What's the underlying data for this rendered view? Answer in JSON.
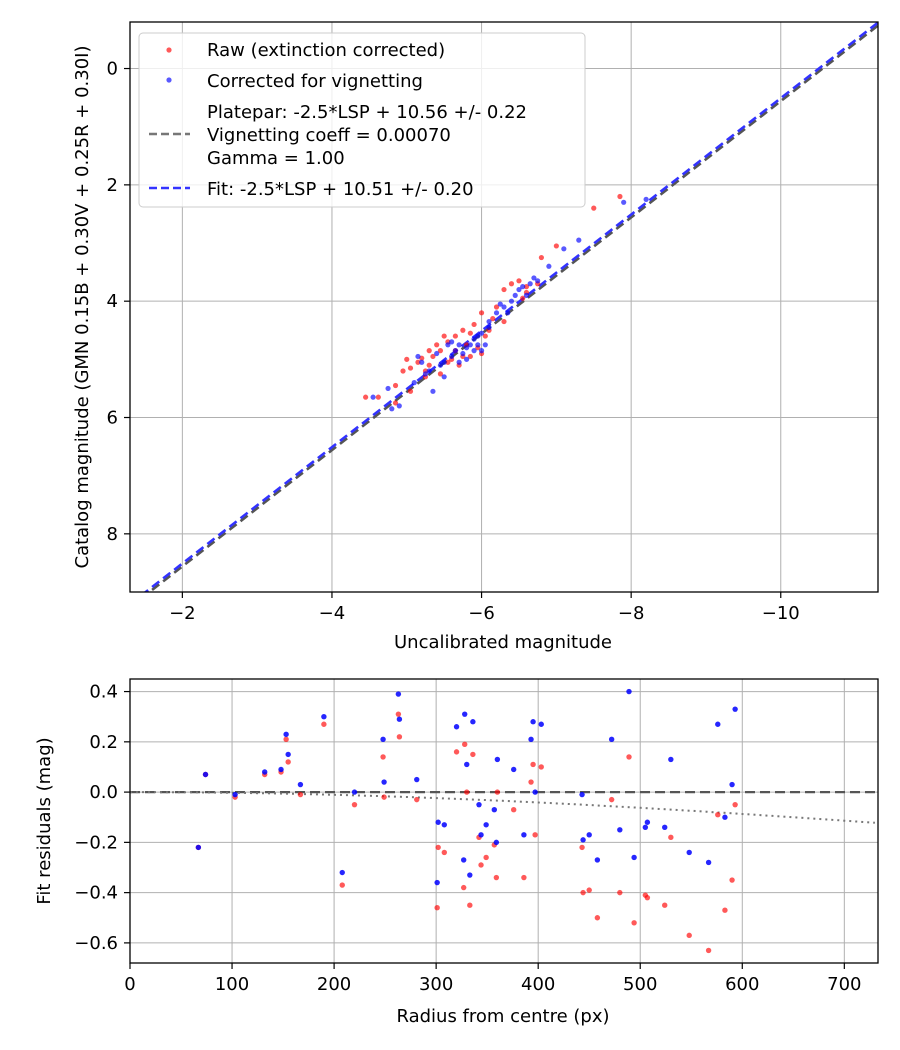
{
  "charts": [
    {
      "type": "scatter",
      "xlabel": "Uncalibrated magnitude",
      "ylabel": "Catalog magnitude (GMN 0.15B + 0.30V + 0.25R + 0.30I)",
      "xlim": [
        -1.3,
        -11.3
      ],
      "ylim": [
        9.0,
        -0.8
      ],
      "xticks": [
        -2,
        -4,
        -6,
        -8,
        -10
      ],
      "xtick_labels": [
        "−2",
        "−4",
        "−6",
        "−8",
        "−10"
      ],
      "yticks": [
        0,
        2,
        4,
        6,
        8
      ],
      "ytick_labels": [
        "0",
        "2",
        "4",
        "6",
        "8"
      ],
      "grid": true,
      "legend": {
        "position": "top-left",
        "raw": "Raw (extinction corrected)",
        "corrected": "Corrected for vignetting",
        "platepar": [
          "Platepar: -2.5*LSP + 10.56 +/- 0.22",
          "Vignetting coeff = 0.00070",
          "Gamma = 1.00"
        ],
        "fit": "Fit: -2.5*LSP + 10.51 +/- 0.20"
      },
      "colors": {
        "raw": "#ff0000",
        "corrected": "#0000ff",
        "platepar": "#555555",
        "fit": "#3333ff"
      },
      "lines": [
        {
          "name": "platepar",
          "slope": -2.5,
          "intercept": 10.56,
          "style": "dashed"
        },
        {
          "name": "fit",
          "slope": -2.5,
          "intercept": 10.51,
          "style": "dashed"
        }
      ],
      "raw_points": [
        [
          -4.45,
          5.65
        ],
        [
          -4.62,
          5.65
        ],
        [
          -4.85,
          5.45
        ],
        [
          -4.95,
          5.2
        ],
        [
          -5.0,
          5.0
        ],
        [
          -5.05,
          5.15
        ],
        [
          -5.15,
          5.05
        ],
        [
          -5.2,
          4.98
        ],
        [
          -5.25,
          5.2
        ],
        [
          -5.3,
          5.1
        ],
        [
          -5.35,
          4.95
        ],
        [
          -5.4,
          4.75
        ],
        [
          -5.45,
          4.85
        ],
        [
          -5.5,
          4.6
        ],
        [
          -5.55,
          4.7
        ],
        [
          -5.6,
          5.0
        ],
        [
          -5.65,
          4.85
        ],
        [
          -5.7,
          5.1
        ],
        [
          -5.75,
          4.5
        ],
        [
          -5.8,
          4.75
        ],
        [
          -5.85,
          4.95
        ],
        [
          -5.9,
          4.4
        ],
        [
          -5.95,
          4.8
        ],
        [
          -6.0,
          4.2
        ],
        [
          -6.05,
          4.6
        ],
        [
          -6.1,
          4.5
        ],
        [
          -6.2,
          4.1
        ],
        [
          -6.3,
          3.8
        ],
        [
          -6.4,
          3.7
        ],
        [
          -6.5,
          3.65
        ],
        [
          -6.6,
          3.75
        ],
        [
          -6.8,
          3.25
        ],
        [
          -7.0,
          3.05
        ],
        [
          -7.5,
          2.4
        ],
        [
          -7.85,
          2.2
        ],
        [
          -5.05,
          5.55
        ],
        [
          -5.25,
          5.3
        ],
        [
          -5.45,
          5.25
        ],
        [
          -5.65,
          4.6
        ],
        [
          -5.85,
          4.55
        ],
        [
          -6.0,
          4.9
        ],
        [
          -6.3,
          4.35
        ],
        [
          -6.55,
          3.95
        ],
        [
          -6.75,
          3.7
        ],
        [
          -4.85,
          5.75
        ],
        [
          -5.3,
          4.85
        ],
        [
          -5.55,
          5.05
        ],
        [
          -5.75,
          4.95
        ],
        [
          -6.15,
          4.3
        ],
        [
          -6.6,
          3.85
        ]
      ],
      "corrected_points": [
        [
          -4.55,
          5.65
        ],
        [
          -4.75,
          5.5
        ],
        [
          -4.9,
          5.8
        ],
        [
          -5.1,
          5.4
        ],
        [
          -5.2,
          5.05
        ],
        [
          -5.3,
          5.2
        ],
        [
          -5.4,
          4.9
        ],
        [
          -5.45,
          5.1
        ],
        [
          -5.5,
          5.05
        ],
        [
          -5.55,
          4.75
        ],
        [
          -5.6,
          4.95
        ],
        [
          -5.65,
          4.85
        ],
        [
          -5.7,
          4.75
        ],
        [
          -5.75,
          4.9
        ],
        [
          -5.8,
          4.8
        ],
        [
          -5.85,
          4.75
        ],
        [
          -5.9,
          4.85
        ],
        [
          -5.95,
          4.6
        ],
        [
          -6.0,
          4.55
        ],
        [
          -6.05,
          4.75
        ],
        [
          -6.1,
          4.45
        ],
        [
          -6.2,
          4.2
        ],
        [
          -6.3,
          4.1
        ],
        [
          -6.45,
          3.9
        ],
        [
          -6.55,
          3.75
        ],
        [
          -6.7,
          3.6
        ],
        [
          -6.9,
          3.4
        ],
        [
          -7.1,
          3.1
        ],
        [
          -7.9,
          2.3
        ],
        [
          -8.2,
          2.25
        ],
        [
          -5.35,
          5.55
        ],
        [
          -5.5,
          5.3
        ],
        [
          -5.8,
          5.0
        ],
        [
          -6.0,
          4.85
        ],
        [
          -6.4,
          4.0
        ],
        [
          -6.65,
          3.7
        ],
        [
          -5.6,
          4.7
        ],
        [
          -5.9,
          4.65
        ],
        [
          -6.1,
          4.35
        ],
        [
          -6.75,
          3.65
        ],
        [
          -4.8,
          5.85
        ],
        [
          -5.25,
          5.25
        ],
        [
          -5.7,
          5.05
        ],
        [
          -6.25,
          4.05
        ],
        [
          -6.6,
          3.9
        ],
        [
          -7.3,
          2.95
        ],
        [
          -5.15,
          4.95
        ],
        [
          -5.95,
          4.75
        ],
        [
          -6.35,
          4.2
        ],
        [
          -6.5,
          3.8
        ]
      ]
    },
    {
      "type": "scatter",
      "xlabel": "Radius from centre (px)",
      "ylabel": "Fit residuals (mag)",
      "xlim": [
        0,
        733
      ],
      "ylim": [
        -0.68,
        0.45
      ],
      "xticks": [
        0,
        100,
        200,
        300,
        400,
        500,
        600,
        700
      ],
      "xtick_labels": [
        "0",
        "100",
        "200",
        "300",
        "400",
        "500",
        "600",
        "700"
      ],
      "yticks": [
        0.4,
        0.2,
        0.0,
        -0.2,
        -0.4,
        -0.6
      ],
      "ytick_labels": [
        "0.4",
        "0.2",
        "0.0",
        "−0.2",
        "−0.4",
        "−0.6"
      ],
      "grid": true,
      "zero_line": 0.0,
      "vignetting_curve": {
        "coeff": 0.0007,
        "description": "-1.115*(1-cos(atan(coeff*r)))"
      },
      "colors": {
        "raw": "#ff0000",
        "corrected": "#0000ff",
        "zero": "#555555",
        "curve": "#777777"
      },
      "raw_points": [
        [
          67,
          -0.22
        ],
        [
          74,
          0.07
        ],
        [
          103,
          -0.02
        ],
        [
          132,
          0.07
        ],
        [
          148,
          0.08
        ],
        [
          153,
          0.21
        ],
        [
          155,
          0.12
        ],
        [
          167,
          -0.01
        ],
        [
          190,
          0.27
        ],
        [
          208,
          -0.37
        ],
        [
          220,
          -0.05
        ],
        [
          248,
          0.14
        ],
        [
          249,
          -0.02
        ],
        [
          263,
          0.31
        ],
        [
          264,
          0.22
        ],
        [
          281,
          -0.03
        ],
        [
          301,
          -0.46
        ],
        [
          302,
          -0.22
        ],
        [
          308,
          -0.24
        ],
        [
          320,
          0.16
        ],
        [
          327,
          -0.38
        ],
        [
          328,
          0.19
        ],
        [
          330,
          0.0
        ],
        [
          333,
          -0.45
        ],
        [
          336,
          0.15
        ],
        [
          342,
          -0.18
        ],
        [
          344,
          -0.29
        ],
        [
          349,
          -0.26
        ],
        [
          357,
          -0.21
        ],
        [
          359,
          -0.34
        ],
        [
          360,
          0.0
        ],
        [
          376,
          -0.07
        ],
        [
          386,
          -0.34
        ],
        [
          393,
          0.04
        ],
        [
          395,
          0.11
        ],
        [
          397,
          -0.17
        ],
        [
          403,
          0.1
        ],
        [
          443,
          -0.22
        ],
        [
          444,
          -0.4
        ],
        [
          450,
          -0.39
        ],
        [
          458,
          -0.5
        ],
        [
          472,
          -0.03
        ],
        [
          480,
          -0.4
        ],
        [
          489,
          0.14
        ],
        [
          494,
          -0.52
        ],
        [
          505,
          -0.41
        ],
        [
          507,
          -0.42
        ],
        [
          524,
          -0.45
        ],
        [
          530,
          -0.18
        ],
        [
          548,
          -0.57
        ],
        [
          567,
          -0.63
        ],
        [
          576,
          -0.09
        ],
        [
          583,
          -0.47
        ],
        [
          590,
          -0.35
        ],
        [
          593,
          -0.05
        ]
      ],
      "corrected_points": [
        [
          67,
          -0.22
        ],
        [
          74,
          0.07
        ],
        [
          103,
          -0.01
        ],
        [
          132,
          0.08
        ],
        [
          148,
          0.09
        ],
        [
          153,
          0.23
        ],
        [
          155,
          0.15
        ],
        [
          167,
          0.03
        ],
        [
          190,
          0.3
        ],
        [
          208,
          -0.32
        ],
        [
          220,
          0.0
        ],
        [
          248,
          0.21
        ],
        [
          249,
          0.04
        ],
        [
          263,
          0.39
        ],
        [
          264,
          0.29
        ],
        [
          281,
          0.05
        ],
        [
          301,
          -0.36
        ],
        [
          302,
          -0.12
        ],
        [
          308,
          -0.13
        ],
        [
          320,
          0.26
        ],
        [
          327,
          -0.27
        ],
        [
          328,
          0.31
        ],
        [
          330,
          0.11
        ],
        [
          333,
          -0.33
        ],
        [
          336,
          0.28
        ],
        [
          342,
          -0.05
        ],
        [
          344,
          -0.17
        ],
        [
          349,
          -0.13
        ],
        [
          357,
          -0.07
        ],
        [
          359,
          -0.2
        ],
        [
          360,
          0.13
        ],
        [
          376,
          0.09
        ],
        [
          386,
          -0.17
        ],
        [
          393,
          0.21
        ],
        [
          395,
          0.28
        ],
        [
          397,
          0.0
        ],
        [
          403,
          0.27
        ],
        [
          443,
          -0.01
        ],
        [
          444,
          -0.19
        ],
        [
          450,
          -0.17
        ],
        [
          458,
          -0.27
        ],
        [
          472,
          0.21
        ],
        [
          480,
          -0.15
        ],
        [
          489,
          0.4
        ],
        [
          494,
          -0.26
        ],
        [
          505,
          -0.14
        ],
        [
          507,
          -0.12
        ],
        [
          524,
          -0.14
        ],
        [
          530,
          0.13
        ],
        [
          548,
          -0.24
        ],
        [
          567,
          -0.28
        ],
        [
          576,
          0.27
        ],
        [
          583,
          -0.1
        ],
        [
          590,
          0.03
        ],
        [
          593,
          0.33
        ]
      ]
    }
  ]
}
